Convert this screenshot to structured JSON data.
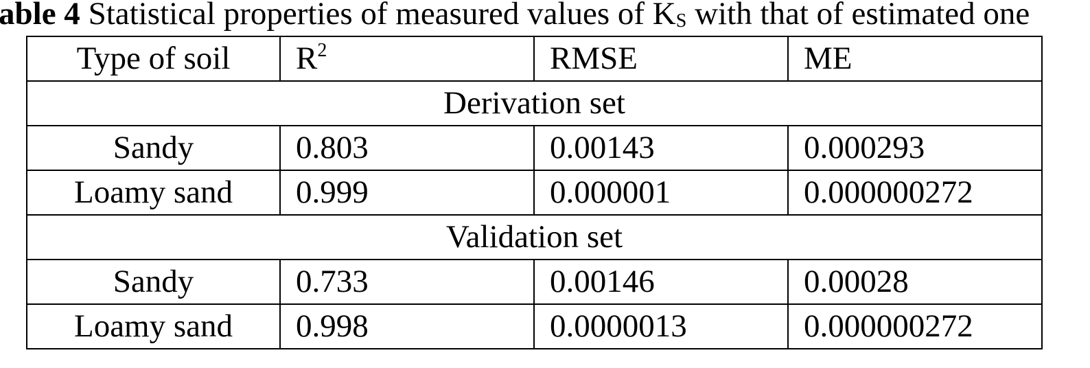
{
  "title": {
    "label": "able 4",
    "text_before": "Statistical properties of measured values of K",
    "subscript": "S",
    "text_after": " with that of estimated one"
  },
  "table": {
    "header": [
      "Type of soil",
      {
        "base": "R",
        "sup": "2"
      },
      "RMSE",
      "ME"
    ],
    "sections": [
      {
        "title": "Derivation set",
        "rows": [
          [
            "Sandy",
            "0.803",
            "0.00143",
            "0.000293"
          ],
          [
            "Loamy sand",
            "0.999",
            "0.000001",
            "0.000000272"
          ]
        ]
      },
      {
        "title": "Validation set",
        "rows": [
          [
            "Sandy",
            "0.733",
            "0.00146",
            "0.00028"
          ],
          [
            "Loamy sand",
            "0.998",
            "0.0000013",
            "0.000000272"
          ]
        ]
      }
    ]
  }
}
